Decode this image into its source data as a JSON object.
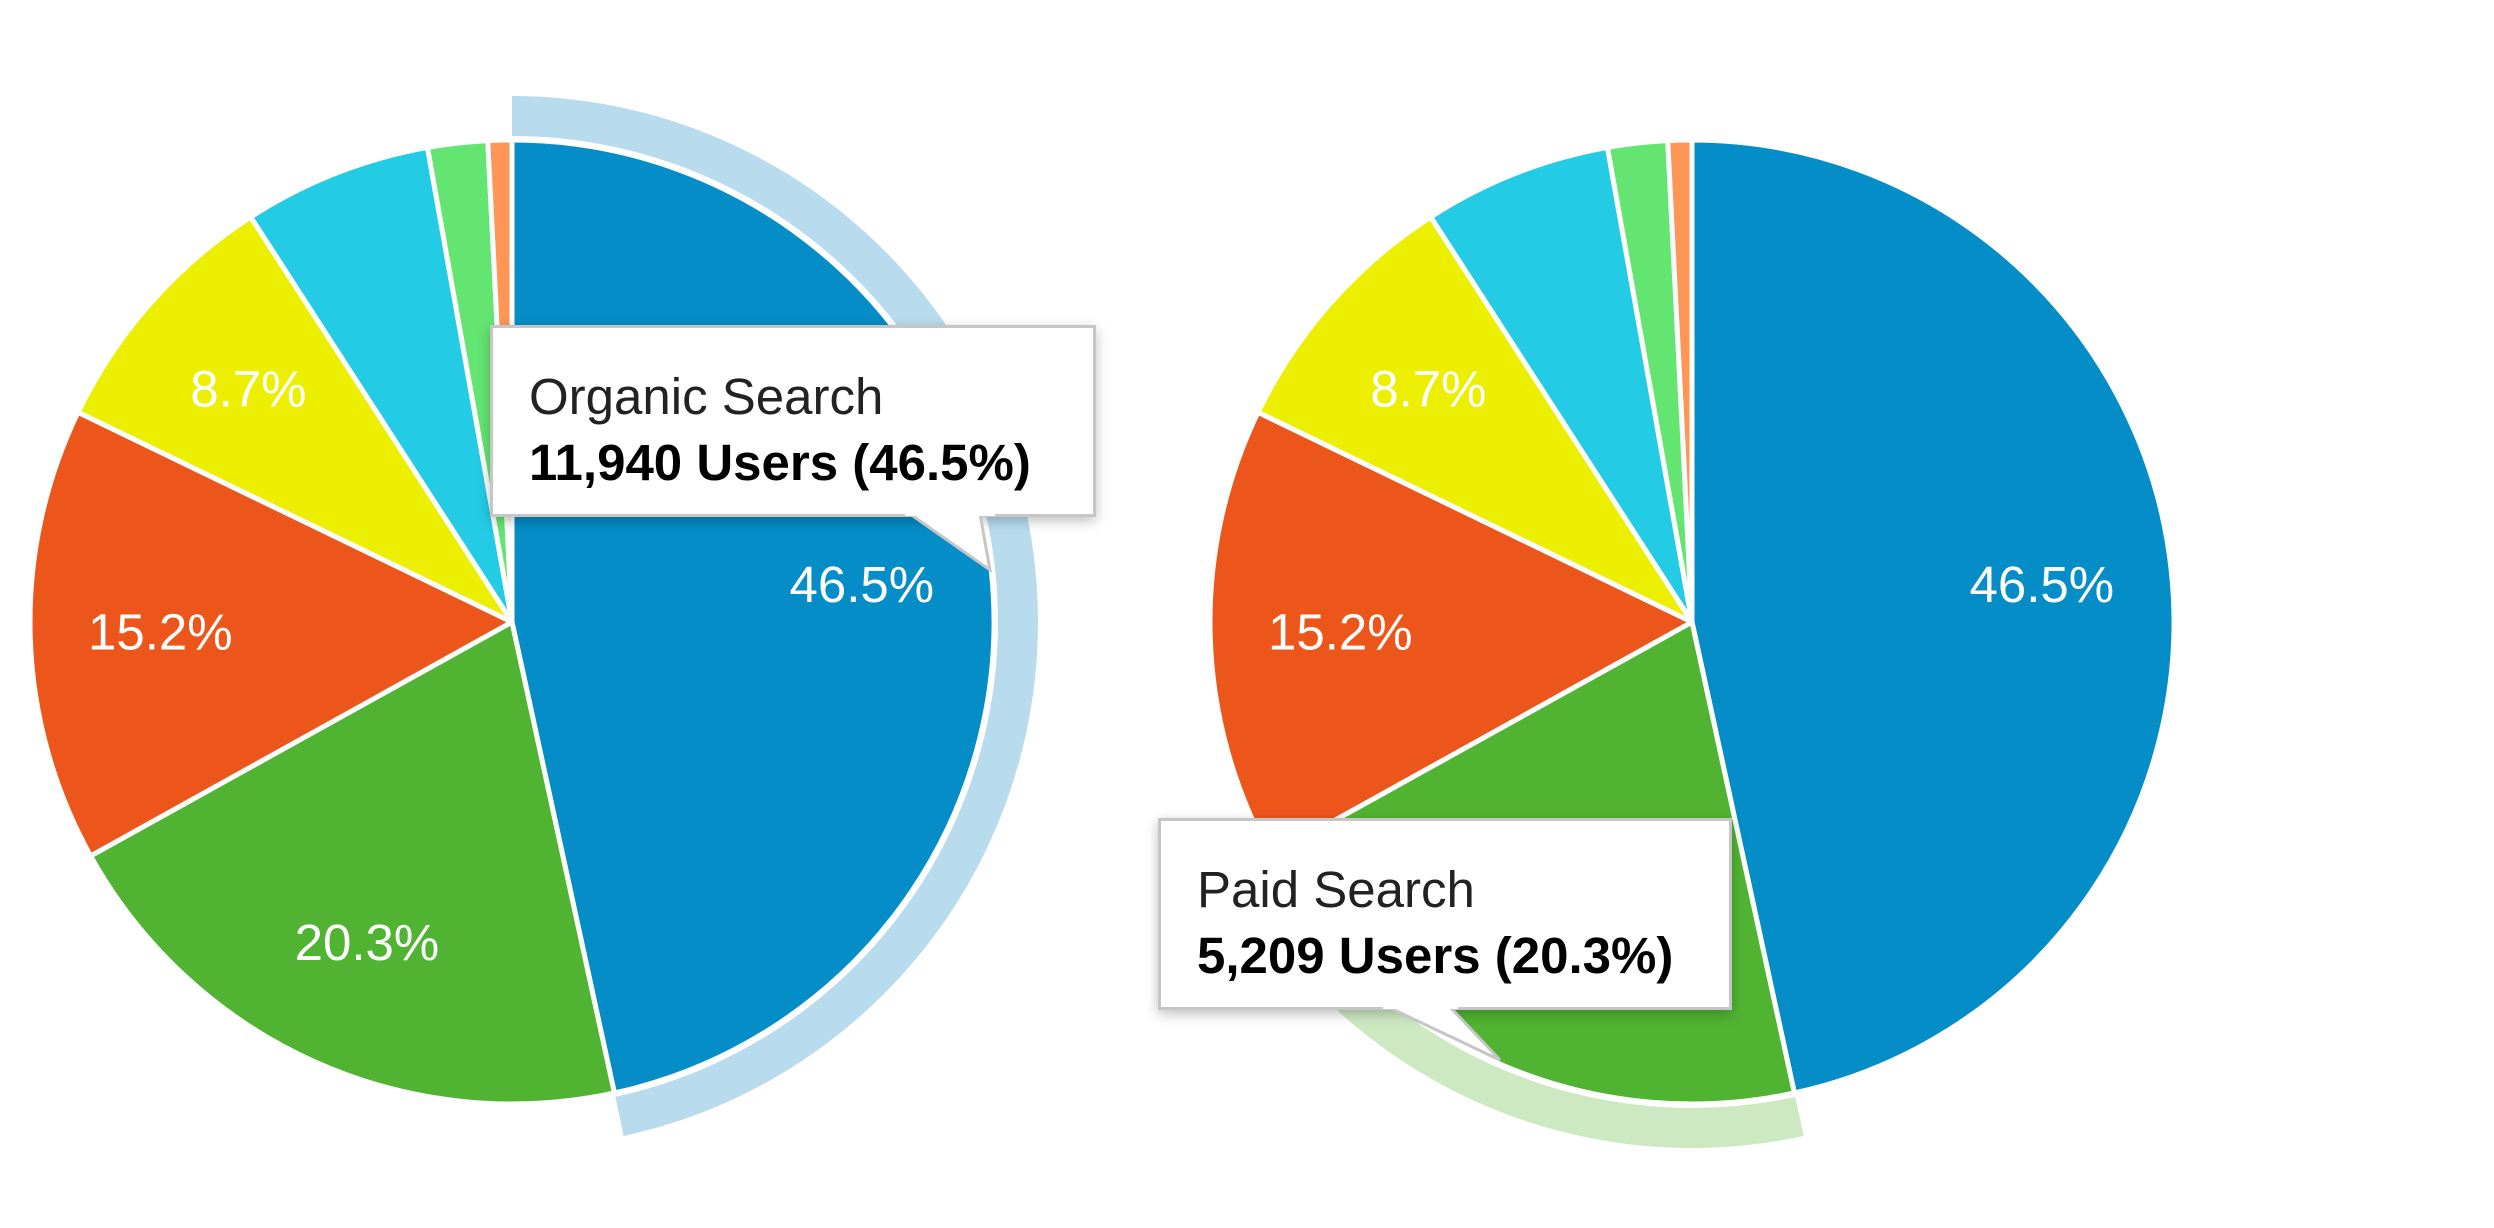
{
  "colors": {
    "organic": "#058dc7",
    "paid": "#50b432",
    "red": "#ed561b",
    "yellow": "#edef00",
    "cyan": "#24cbe5",
    "lightgreen": "#64e572",
    "orange": "#ff9655",
    "hover_organic": "#b8dcee",
    "hover_paid": "#cde9c2"
  },
  "chart_data": [
    {
      "type": "pie",
      "slices": [
        {
          "value": 46.5,
          "label": "46.5%",
          "color": "#058dc7"
        },
        {
          "value": 20.3,
          "label": "20.3%",
          "color": "#50b432"
        },
        {
          "value": 15.2,
          "label": "15.2%",
          "color": "#ed561b"
        },
        {
          "value": 8.7,
          "label": "8.7%",
          "color": "#edef00"
        },
        {
          "value": 6.3,
          "label": "",
          "color": "#24cbe5"
        },
        {
          "value": 2.0,
          "label": "",
          "color": "#64e572"
        },
        {
          "value": 0.8,
          "label": "",
          "color": "#ff9655"
        }
      ],
      "highlighted_index": 0,
      "tooltip": {
        "title": "Organic Search",
        "value": "11,940 Users (46.5%)"
      }
    },
    {
      "type": "pie",
      "slices": [
        {
          "value": 46.5,
          "label": "46.5%",
          "color": "#058dc7"
        },
        {
          "value": 20.3,
          "label": "",
          "color": "#50b432"
        },
        {
          "value": 15.2,
          "label": "15.2%",
          "color": "#ed561b"
        },
        {
          "value": 8.7,
          "label": "8.7%",
          "color": "#edef00"
        },
        {
          "value": 6.3,
          "label": "",
          "color": "#24cbe5"
        },
        {
          "value": 2.0,
          "label": "",
          "color": "#64e572"
        },
        {
          "value": 0.8,
          "label": "",
          "color": "#ff9655"
        }
      ],
      "highlighted_index": 1,
      "tooltip": {
        "title": "Paid Search",
        "value": "5,209 Users (20.3%)"
      }
    }
  ]
}
